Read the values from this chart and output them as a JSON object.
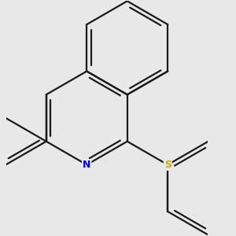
{
  "background_color": "#e8e8e8",
  "bond_color": "#1a1a1a",
  "N_color": "#0000ff",
  "S_color": "#ccaa00",
  "F_color": "#ee00ee",
  "line_width": 1.6,
  "figsize": [
    3.0,
    3.0
  ],
  "dpi": 100,
  "xlim": [
    -0.5,
    3.8
  ],
  "ylim": [
    -2.8,
    2.2
  ]
}
